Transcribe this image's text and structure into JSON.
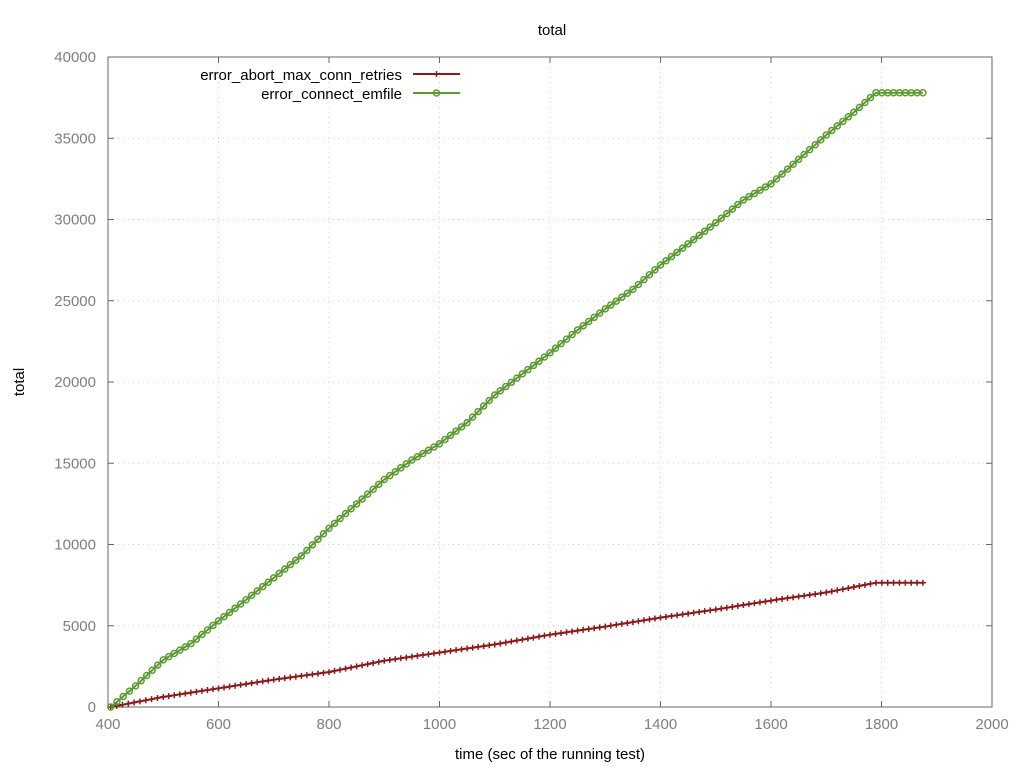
{
  "chart_data": {
    "type": "line",
    "title": "total",
    "xlabel": "time (sec of the running test)",
    "ylabel": "total",
    "xlim": [
      400,
      2000
    ],
    "ylim": [
      0,
      40000
    ],
    "xticks": [
      400,
      600,
      800,
      1000,
      1200,
      1400,
      1600,
      1800,
      2000
    ],
    "yticks": [
      0,
      5000,
      10000,
      15000,
      20000,
      25000,
      30000,
      35000,
      40000
    ],
    "grid": true,
    "legend_position": "top-left",
    "series": [
      {
        "name": "error_abort_max_conn_retries",
        "color": "#8b1a1a",
        "marker": "plus",
        "points": [
          [
            405,
            0
          ],
          [
            500,
            620
          ],
          [
            600,
            1150
          ],
          [
            700,
            1680
          ],
          [
            800,
            2150
          ],
          [
            900,
            2850
          ],
          [
            1000,
            3350
          ],
          [
            1100,
            3850
          ],
          [
            1200,
            4450
          ],
          [
            1300,
            4950
          ],
          [
            1400,
            5500
          ],
          [
            1500,
            6000
          ],
          [
            1600,
            6550
          ],
          [
            1700,
            7050
          ],
          [
            1790,
            7650
          ],
          [
            1875,
            7650
          ]
        ]
      },
      {
        "name": "error_connect_emfile",
        "color": "#5a9a30",
        "marker": "circle",
        "points": [
          [
            405,
            0
          ],
          [
            450,
            1300
          ],
          [
            500,
            2900
          ],
          [
            550,
            3900
          ],
          [
            600,
            5300
          ],
          [
            650,
            6600
          ],
          [
            700,
            7950
          ],
          [
            750,
            9300
          ],
          [
            800,
            11000
          ],
          [
            850,
            12500
          ],
          [
            900,
            14000
          ],
          [
            950,
            15200
          ],
          [
            1000,
            16200
          ],
          [
            1050,
            17500
          ],
          [
            1100,
            19200
          ],
          [
            1150,
            20500
          ],
          [
            1200,
            21800
          ],
          [
            1250,
            23200
          ],
          [
            1300,
            24500
          ],
          [
            1350,
            25700
          ],
          [
            1400,
            27200
          ],
          [
            1450,
            28500
          ],
          [
            1500,
            29800
          ],
          [
            1550,
            31200
          ],
          [
            1600,
            32200
          ],
          [
            1650,
            33700
          ],
          [
            1700,
            35200
          ],
          [
            1750,
            36600
          ],
          [
            1790,
            37800
          ],
          [
            1875,
            37800
          ]
        ]
      }
    ]
  }
}
